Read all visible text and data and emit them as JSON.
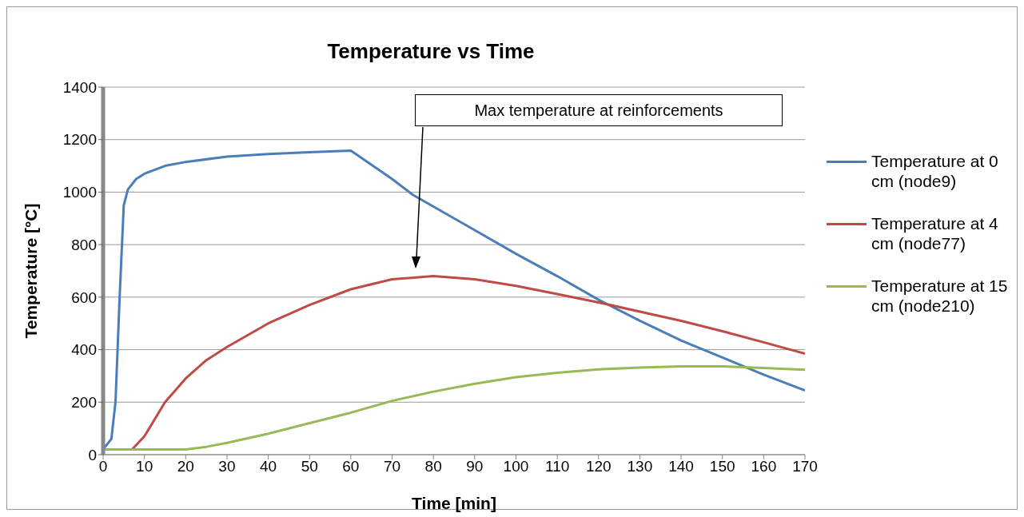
{
  "chart_data": {
    "type": "line",
    "title": "Temperature vs Time",
    "xlabel": "Time [min]",
    "ylabel": "Temperature [°C]",
    "series": [
      {
        "name": "Temperature at 0 cm (node9)",
        "color": "#4a7ebb",
        "x": [
          0,
          2,
          3,
          4,
          5,
          6,
          8,
          10,
          15,
          20,
          30,
          40,
          50,
          60,
          70,
          75,
          80,
          90,
          100,
          110,
          120,
          130,
          140,
          150,
          160,
          170
        ],
        "values": [
          20,
          60,
          200,
          600,
          950,
          1010,
          1050,
          1070,
          1100,
          1115,
          1135,
          1145,
          1152,
          1158,
          1050,
          990,
          945,
          855,
          765,
          680,
          590,
          510,
          435,
          370,
          305,
          245
        ]
      },
      {
        "name": "Temperature at 4 cm (node77)",
        "color": "#be4b48",
        "x": [
          0,
          7,
          10,
          15,
          20,
          25,
          30,
          40,
          50,
          60,
          70,
          80,
          90,
          100,
          110,
          120,
          130,
          140,
          150,
          160,
          170
        ],
        "values": [
          20,
          20,
          70,
          200,
          290,
          360,
          410,
          500,
          570,
          630,
          668,
          680,
          668,
          643,
          612,
          580,
          545,
          510,
          470,
          428,
          385
        ]
      },
      {
        "name": "Temperature at 15 cm (node210)",
        "color": "#98b954",
        "x": [
          0,
          20,
          25,
          30,
          40,
          50,
          60,
          70,
          80,
          90,
          100,
          110,
          120,
          130,
          140,
          150,
          160,
          170
        ],
        "values": [
          20,
          20,
          30,
          45,
          80,
          120,
          160,
          205,
          240,
          270,
          295,
          312,
          325,
          332,
          336,
          336,
          330,
          323
        ]
      }
    ],
    "annotations": [
      "Max temperature at reinforcements"
    ],
    "xlim": [
      0,
      170
    ],
    "xticks": [
      0,
      10,
      20,
      30,
      40,
      50,
      60,
      70,
      80,
      90,
      100,
      110,
      120,
      130,
      140,
      150,
      160,
      170
    ],
    "ylim": [
      0,
      1400
    ],
    "yticks": [
      0,
      200,
      400,
      600,
      800,
      1000,
      1200,
      1400
    ],
    "grid": "y",
    "legend": "right",
    "marker": "none",
    "line_style": "solid"
  }
}
